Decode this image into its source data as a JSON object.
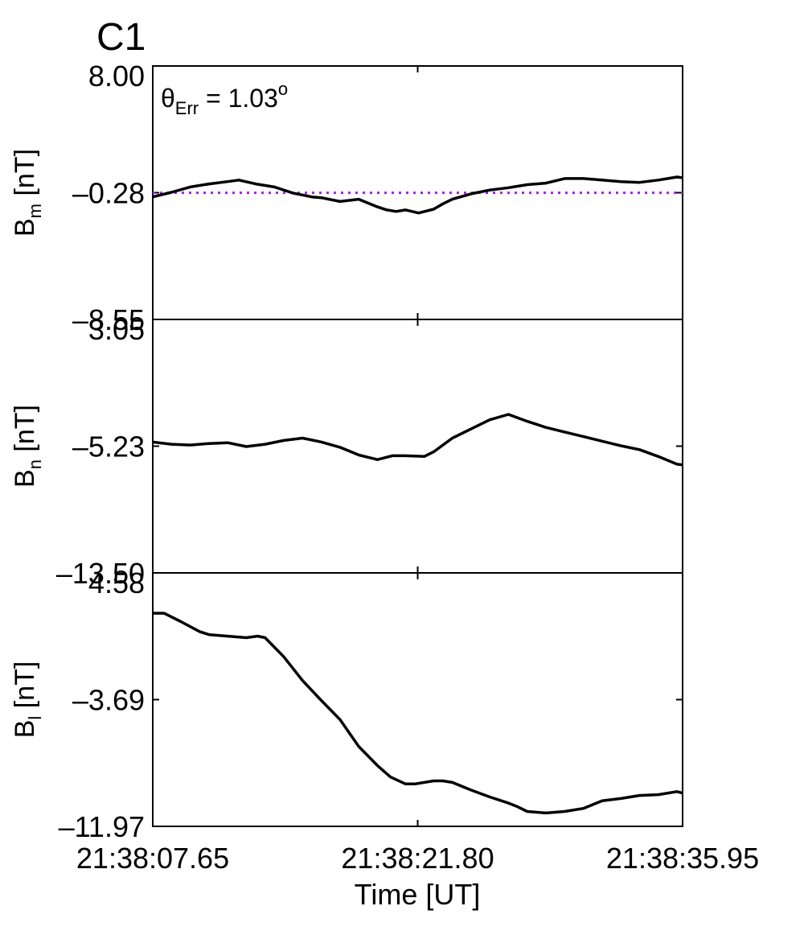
{
  "figure": {
    "label": "C1",
    "label_color": "#e41a1c",
    "annotation": {
      "symbol": "θ",
      "subscript": "Err",
      "text": " =  1.03",
      "superscript": "o"
    }
  },
  "chart_data": {
    "type": "line",
    "xlabel": "Time [UT]",
    "x_ticks": [
      "21:38:07.65",
      "21:38:21.80",
      "21:38:35.95"
    ],
    "x_range_seconds": [
      0,
      28.3
    ],
    "panels": [
      {
        "ylabel": {
          "base": "B",
          "sub": "m",
          "unit": " [nT]"
        },
        "ylim": [
          -8.55,
          8.0
        ],
        "y_ticks": [
          "8.00",
          "–0.28",
          "–8.55"
        ],
        "reference_line": {
          "y": -0.28,
          "color": "#a020f0",
          "style": "dotted"
        },
        "series": [
          {
            "t": [
              0,
              1,
              2,
              3,
              4,
              4.6,
              5.5,
              6.5,
              7.5,
              8.5,
              9,
              10,
              11,
              12,
              12.5,
              13,
              13.5,
              14.2,
              15,
              15.5,
              16,
              17,
              18,
              19,
              20,
              21,
              22,
              23,
              24,
              25,
              26,
              27,
              28,
              28.3
            ],
            "v": [
              -0.55,
              -0.25,
              0.1,
              0.3,
              0.45,
              0.55,
              0.3,
              0.1,
              -0.3,
              -0.55,
              -0.6,
              -0.85,
              -0.7,
              -1.2,
              -1.4,
              -1.5,
              -1.4,
              -1.6,
              -1.35,
              -1.0,
              -0.7,
              -0.35,
              -0.1,
              0.05,
              0.25,
              0.35,
              0.65,
              0.65,
              0.55,
              0.45,
              0.4,
              0.55,
              0.75,
              0.7
            ]
          }
        ]
      },
      {
        "ylabel": {
          "base": "B",
          "sub": "n",
          "unit": " [nT]"
        },
        "ylim": [
          -13.5,
          3.05
        ],
        "y_ticks": [
          "3.05",
          "–5.23",
          "–13.50"
        ],
        "series": [
          {
            "t": [
              0,
              1,
              2,
              3,
              4,
              5,
              6,
              7,
              8,
              9,
              10,
              11,
              12,
              12.8,
              13.5,
              14.5,
              15,
              16,
              17,
              18,
              19,
              20,
              21,
              22,
              23,
              24,
              25,
              26,
              27,
              28,
              28.3
            ],
            "v": [
              -4.95,
              -5.1,
              -5.15,
              -5.05,
              -5.0,
              -5.25,
              -5.1,
              -4.85,
              -4.7,
              -4.95,
              -5.3,
              -5.8,
              -6.1,
              -5.85,
              -5.85,
              -5.9,
              -5.6,
              -4.7,
              -4.1,
              -3.5,
              -3.15,
              -3.6,
              -4.0,
              -4.3,
              -4.6,
              -4.9,
              -5.2,
              -5.45,
              -5.9,
              -6.4,
              -6.45
            ]
          }
        ]
      },
      {
        "ylabel": {
          "base": "B",
          "sub": "l",
          "unit": " [nT]"
        },
        "ylim": [
          -11.97,
          4.58
        ],
        "y_ticks": [
          "4.58",
          "–3.69",
          "–11.97"
        ],
        "series": [
          {
            "t": [
              0,
              0.6,
              1.5,
              2.5,
              3,
              4,
              5,
              5.6,
              6,
              7,
              8,
              9,
              10,
              11,
              12,
              12.7,
              13.5,
              14,
              15,
              15.5,
              16,
              17,
              18,
              19,
              19.5,
              20,
              21,
              22,
              23,
              24,
              25,
              26,
              27,
              28,
              28.3
            ],
            "v": [
              1.95,
              1.95,
              1.4,
              0.75,
              0.55,
              0.45,
              0.35,
              0.45,
              0.35,
              -0.9,
              -2.45,
              -3.75,
              -5.0,
              -6.75,
              -8.0,
              -8.75,
              -9.2,
              -9.2,
              -9.0,
              -9.0,
              -9.1,
              -9.6,
              -10.05,
              -10.45,
              -10.7,
              -11.0,
              -11.1,
              -11.0,
              -10.8,
              -10.3,
              -10.15,
              -9.95,
              -9.9,
              -9.7,
              -9.8
            ]
          }
        ]
      }
    ]
  }
}
